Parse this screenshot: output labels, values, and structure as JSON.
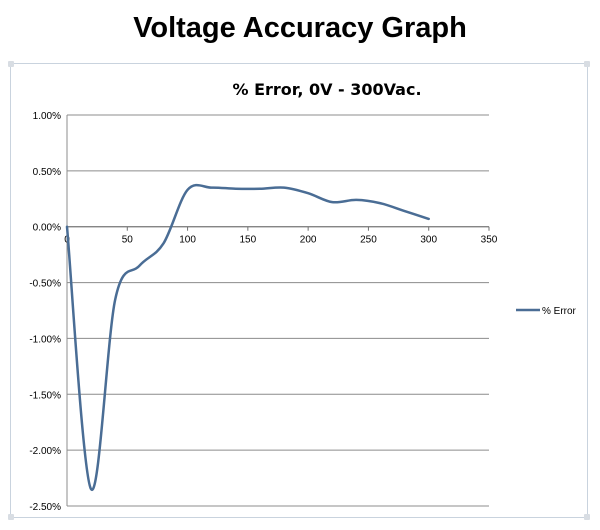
{
  "page": {
    "title": "Voltage Accuracy Graph"
  },
  "colors": {
    "series_line": "#4a6d95",
    "gridline": "#8c8c8c",
    "frame": "#c9d3de"
  },
  "chart_data": {
    "type": "line",
    "title": "% Error, 0V - 300Vac.",
    "xlabel": "",
    "ylabel": "",
    "xlim": [
      0,
      350
    ],
    "ylim": [
      -0.025,
      0.01
    ],
    "x_ticks": [
      0,
      50,
      100,
      150,
      200,
      250,
      300,
      350
    ],
    "x_tick_labels": [
      "0",
      "50",
      "100",
      "150",
      "200",
      "250",
      "300",
      "350"
    ],
    "y_ticks": [
      0.01,
      0.005,
      0,
      -0.005,
      -0.01,
      -0.015,
      -0.02,
      -0.025
    ],
    "y_tick_labels": [
      "1.00%",
      "0.50%",
      "0.00%",
      "-0.50%",
      "-1.00%",
      "-1.50%",
      "-2.00%",
      "-2.50%"
    ],
    "grid": "horizontal major gridlines",
    "legend_position": "right",
    "smooth": true,
    "series": [
      {
        "name": "% Error",
        "x": [
          0,
          20,
          40,
          60,
          80,
          100,
          120,
          140,
          160,
          180,
          200,
          220,
          240,
          260,
          280,
          300
        ],
        "y": [
          0.0,
          -0.0235,
          -0.0065,
          -0.0035,
          -0.0015,
          0.0033,
          0.0035,
          0.0034,
          0.0034,
          0.0035,
          0.003,
          0.0022,
          0.0024,
          0.0021,
          0.0014,
          0.0007
        ]
      }
    ]
  }
}
